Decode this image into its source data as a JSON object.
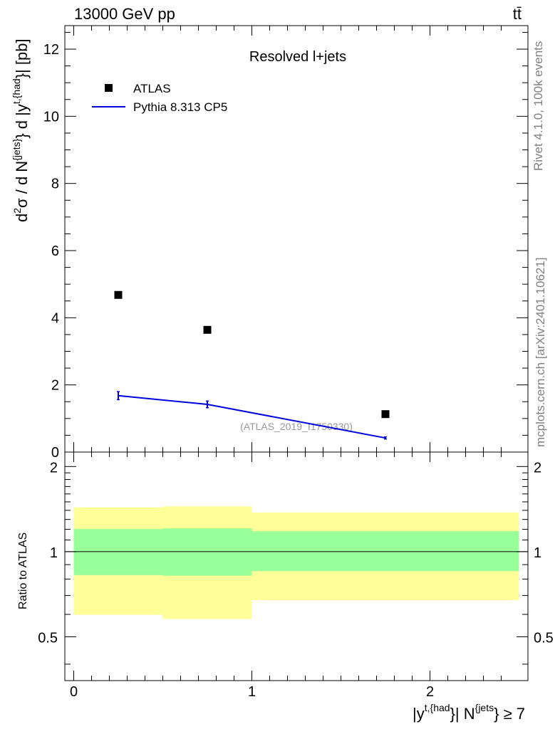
{
  "header": {
    "energy_label": "13000 GeV pp",
    "process_label": "tt̄"
  },
  "side_labels": {
    "rivet": "Rivet 4.1.0,  100k events",
    "mcplots": "mcplots.cern.ch [arXiv:2401.10621]"
  },
  "chart_data": [
    {
      "type": "scatter",
      "title": "Resolved l+jets",
      "watermark": "(ATLAS_2019_I1750330)",
      "ylabel": "d²σ / d N{jets} d |y^{t,{had}}| [pb]",
      "ylim": [
        0,
        12.7
      ],
      "yticks": [
        0,
        2,
        4,
        6,
        8,
        10,
        12
      ],
      "xlim": [
        -0.05,
        2.55
      ],
      "legend_position": "top-left",
      "series": [
        {
          "name": "ATLAS",
          "style": "markers",
          "color": "#000000",
          "x": [
            0.25,
            0.75,
            1.75
          ],
          "values": [
            4.68,
            3.64,
            1.13
          ]
        },
        {
          "name": "Pythia 8.313 CP5",
          "style": "line",
          "color": "#0000dd",
          "x": [
            0.25,
            0.75,
            1.75
          ],
          "values": [
            1.68,
            1.42,
            0.42
          ],
          "errors": [
            0.12,
            0.1,
            0.03
          ]
        }
      ]
    },
    {
      "type": "area",
      "ylabel": "Ratio to ATLAS",
      "xlabel": "|y^{t,{had}}| N^{jets} ≥ 7",
      "ylim": [
        0.35,
        2.25
      ],
      "yticks": [
        0.5,
        1,
        2
      ],
      "ytick_labels": [
        "0.5",
        "1",
        "2"
      ],
      "xlim": [
        -0.05,
        2.55
      ],
      "xticks": [
        0,
        1,
        2
      ],
      "xtick_labels": [
        "0",
        "1",
        "2"
      ],
      "reference_line": 1,
      "bands": [
        {
          "x0": 0.0,
          "x1": 0.5,
          "inner": [
            0.826,
            1.202
          ],
          "outer": [
            0.598,
            1.434
          ]
        },
        {
          "x0": 0.5,
          "x1": 1.0,
          "inner": [
            0.822,
            1.209
          ],
          "outer": [
            0.578,
            1.446
          ]
        },
        {
          "x0": 1.0,
          "x1": 2.5,
          "inner": [
            0.853,
            1.181
          ],
          "outer": [
            0.674,
            1.376
          ]
        }
      ],
      "band_colors": {
        "inner": "#99ff99",
        "outer": "#ffff99"
      }
    }
  ]
}
